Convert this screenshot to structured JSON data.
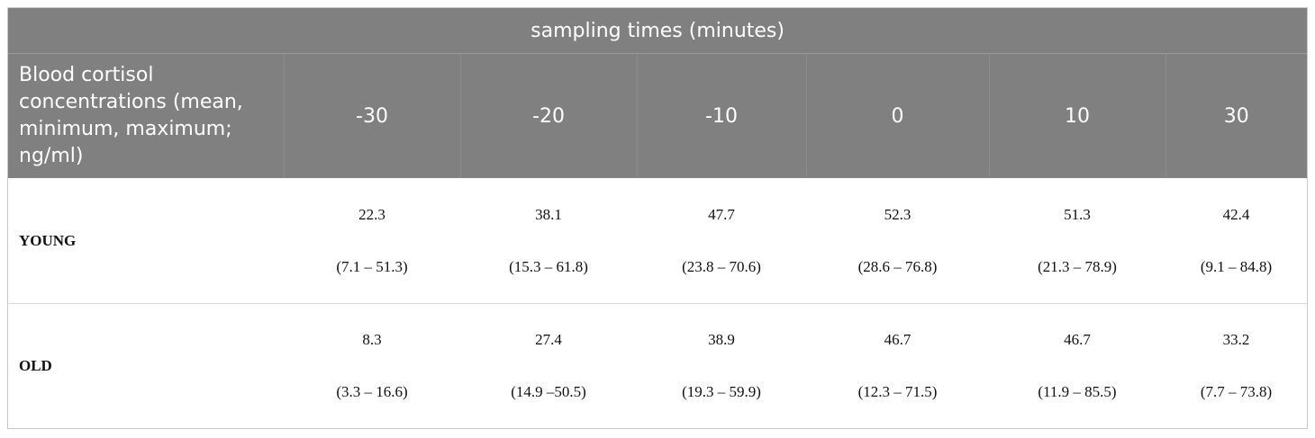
{
  "table": {
    "group_header": "sampling times (minutes)",
    "row_header": "Blood cortisol concentrations (mean, minimum, maximum; ng/ml)",
    "columns": [
      "-30",
      "-20",
      "-10",
      "0",
      "10",
      "30"
    ],
    "rows": [
      {
        "label": "YOUNG",
        "cells": [
          {
            "mean": "22.3",
            "range": "(7.1 – 51.3)"
          },
          {
            "mean": "38.1",
            "range": "(15.3 – 61.8)"
          },
          {
            "mean": "47.7",
            "range": "(23.8 – 70.6)"
          },
          {
            "mean": "52.3",
            "range": "(28.6 – 76.8)"
          },
          {
            "mean": "51.3",
            "range": "(21.3 – 78.9)"
          },
          {
            "mean": "42.4",
            "range": "(9.1 – 84.8)"
          }
        ]
      },
      {
        "label": "OLD",
        "cells": [
          {
            "mean": "8.3",
            "range": "(3.3 – 16.6)"
          },
          {
            "mean": "27.4",
            "range": "(14.9 –50.5)"
          },
          {
            "mean": "38.9",
            "range": "(19.3 – 59.9)"
          },
          {
            "mean": "46.7",
            "range": "(12.3 – 71.5)"
          },
          {
            "mean": "46.7",
            "range": "(11.9 – 85.5)"
          },
          {
            "mean": "33.2",
            "range": "(7.7 – 73.8)"
          }
        ]
      }
    ]
  },
  "colors": {
    "header_bg": "#808080",
    "header_text": "#ffffff",
    "body_text": "#111111"
  }
}
